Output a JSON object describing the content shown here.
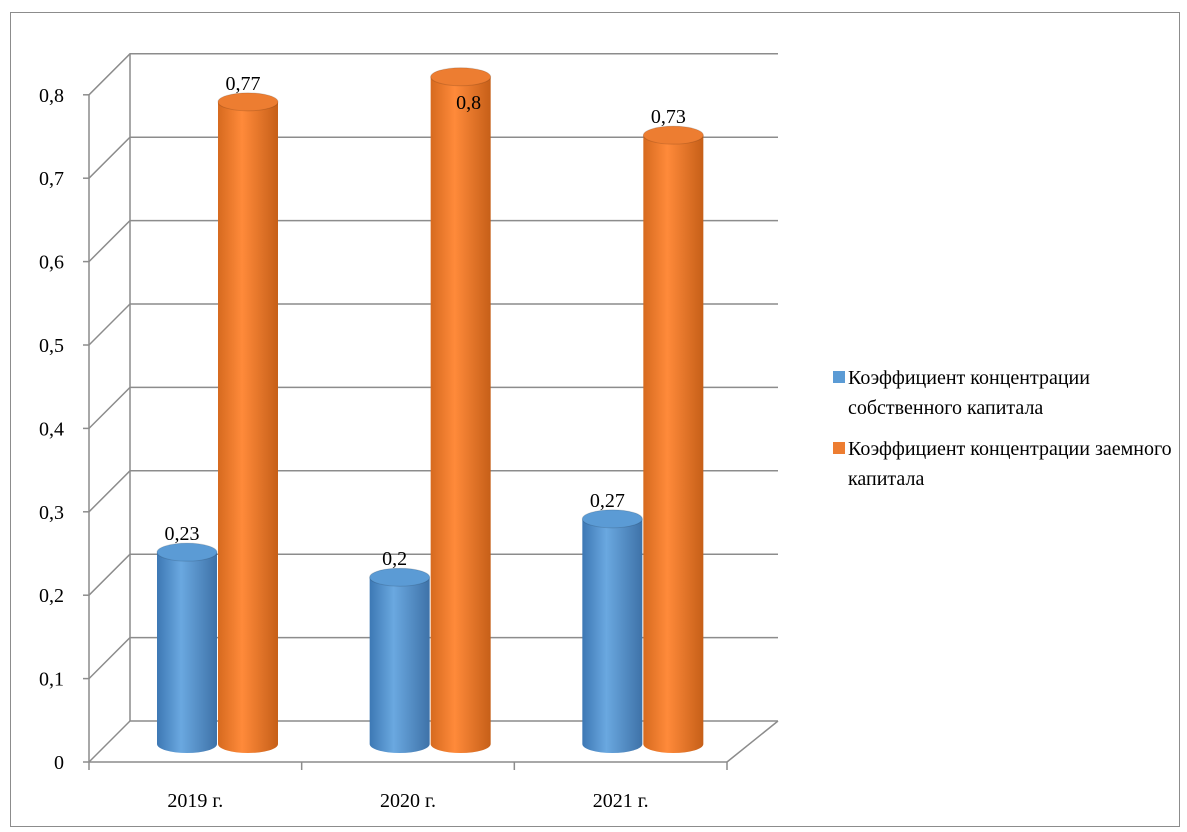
{
  "chart_data": {
    "type": "bar",
    "categories": [
      "2019 г.",
      "2020 г.",
      "2021 г."
    ],
    "series": [
      {
        "name": "Коэффициент концентрации собственного капитала",
        "values": [
          0.23,
          0.2,
          0.27
        ],
        "value_labels": [
          "0,23",
          "0,2",
          "0,27"
        ],
        "color": "#5b9bd5"
      },
      {
        "name": "Коэффициент концентрации заемного капитала",
        "values": [
          0.77,
          0.8,
          0.73
        ],
        "value_labels": [
          "0,77",
          "0,8",
          "0,73"
        ],
        "color": "#ed7d31"
      }
    ],
    "y_ticks": [
      0,
      0.1,
      0.2,
      0.3,
      0.4,
      0.5,
      0.6,
      0.7,
      0.8
    ],
    "y_tick_labels": [
      "0",
      "0,1",
      "0,2",
      "0,3",
      "0,4",
      "0,5",
      "0,6",
      "0,7",
      "0,8"
    ],
    "ylim": [
      0,
      0.8
    ],
    "grid": true,
    "style": "3d-cylinder",
    "legend_position": "right",
    "title": "",
    "xlabel": "",
    "ylabel": ""
  },
  "legend": {
    "items": [
      {
        "label": "Коэффициент концентрации собственного капитала",
        "color": "#5b9bd5"
      },
      {
        "label": "Коэффициент концентрации заемного капитала",
        "color": "#ed7d31"
      }
    ]
  }
}
